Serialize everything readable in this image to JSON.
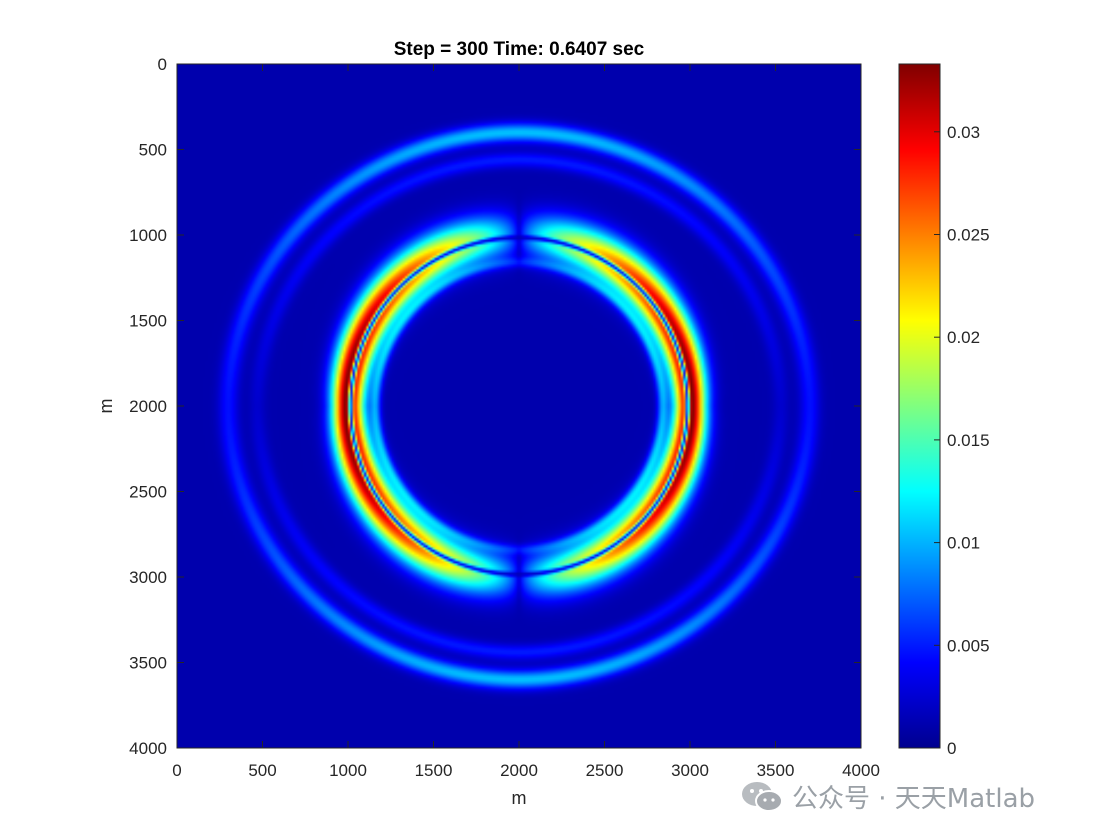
{
  "chart_data": {
    "type": "heatmap",
    "title": "Step = 300 Time: 0.6407 sec",
    "xlabel": "m",
    "ylabel": "m",
    "xlim": [
      0,
      4000
    ],
    "ylim": [
      0,
      4000
    ],
    "y_axis_reversed": true,
    "x_ticks": [
      "0",
      "500",
      "1000",
      "1500",
      "2000",
      "2500",
      "3000",
      "3500",
      "4000"
    ],
    "y_ticks": [
      "0",
      "500",
      "1000",
      "1500",
      "2000",
      "2500",
      "3000",
      "3500",
      "4000"
    ],
    "colormap": "jet",
    "clim": [
      0,
      0.0333
    ],
    "colorbar_ticks": [
      "0",
      "0.005",
      "0.01",
      "0.015",
      "0.02",
      "0.025",
      "0.03"
    ],
    "field": {
      "center": [
        2000,
        2000
      ],
      "background_value": 0.0015,
      "inner_ring": {
        "radius": 1000,
        "peak_value": 0.033,
        "pattern": "peaks at left and right, gaps at top and bottom"
      },
      "outer_ring": {
        "radius_x": 1700,
        "radius_y": 1600,
        "peak_value": 0.009,
        "pattern": "strongest at top and bottom"
      }
    }
  },
  "watermark": {
    "text": "公众号 · 天天Matlab",
    "icon": "wechat-icon"
  }
}
